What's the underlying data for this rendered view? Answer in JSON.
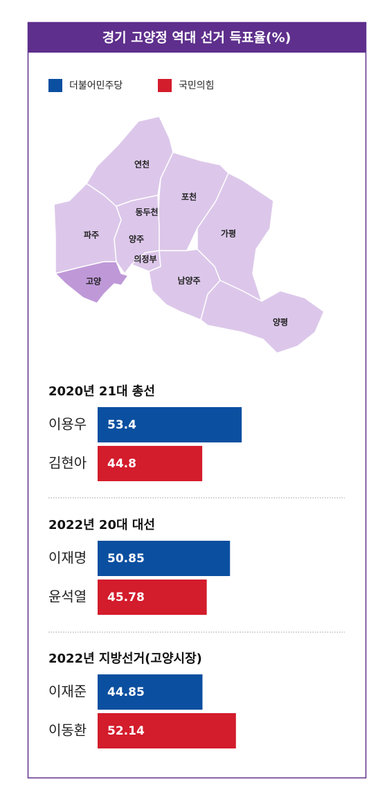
{
  "header": {
    "title": "경기 고양정 역대 선거 득표율(%)"
  },
  "legend": [
    {
      "name": "더불어민주당",
      "color": "#0b4fa0"
    },
    {
      "name": "국민의힘",
      "color": "#d31c2c"
    }
  ],
  "map": {
    "regions": [
      {
        "label": "연천"
      },
      {
        "label": "포천"
      },
      {
        "label": "동두천"
      },
      {
        "label": "파주"
      },
      {
        "label": "양주"
      },
      {
        "label": "가평"
      },
      {
        "label": "의정부"
      },
      {
        "label": "고양"
      },
      {
        "label": "남양주"
      },
      {
        "label": "양평"
      }
    ]
  },
  "chart_data": [
    {
      "type": "bar",
      "title": "2020년 21대 총선",
      "categories": [
        "이용우",
        "김현아"
      ],
      "values": [
        53.4,
        44.8
      ],
      "colors": [
        "#0b4fa0",
        "#d31c2c"
      ],
      "xlim": [
        22,
        57
      ]
    },
    {
      "type": "bar",
      "title": "2022년 20대 대선",
      "categories": [
        "이재명",
        "윤석열"
      ],
      "values": [
        50.85,
        45.78
      ],
      "colors": [
        "#0b4fa0",
        "#d31c2c"
      ],
      "xlim": [
        22,
        57
      ]
    },
    {
      "type": "bar",
      "title": "2022년 지방선거(고양시장)",
      "categories": [
        "이재준",
        "이동환"
      ],
      "values": [
        44.85,
        52.14
      ],
      "colors": [
        "#0b4fa0",
        "#d31c2c"
      ],
      "xlim": [
        22,
        57
      ]
    }
  ]
}
